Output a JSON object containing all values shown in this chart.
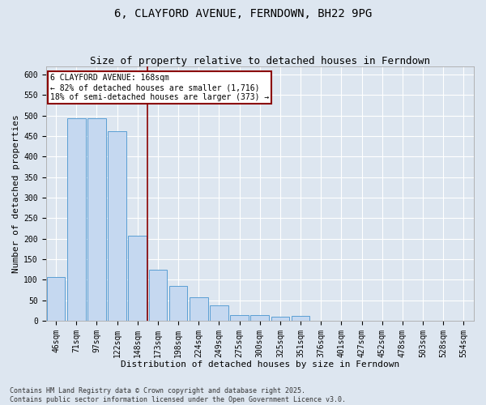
{
  "title": "6, CLAYFORD AVENUE, FERNDOWN, BH22 9PG",
  "subtitle": "Size of property relative to detached houses in Ferndown",
  "xlabel": "Distribution of detached houses by size in Ferndown",
  "ylabel": "Number of detached properties",
  "categories": [
    "46sqm",
    "71sqm",
    "97sqm",
    "122sqm",
    "148sqm",
    "173sqm",
    "198sqm",
    "224sqm",
    "249sqm",
    "275sqm",
    "300sqm",
    "325sqm",
    "351sqm",
    "376sqm",
    "401sqm",
    "427sqm",
    "452sqm",
    "478sqm",
    "503sqm",
    "528sqm",
    "554sqm"
  ],
  "values": [
    107,
    493,
    493,
    461,
    208,
    124,
    84,
    57,
    38,
    14,
    13,
    9,
    11,
    0,
    0,
    0,
    0,
    0,
    0,
    0,
    0
  ],
  "bar_color": "#c5d8f0",
  "bar_edge_color": "#5a9fd4",
  "vline_x_index": 5,
  "vline_color": "#8b0000",
  "annotation_text": "6 CLAYFORD AVENUE: 168sqm\n← 82% of detached houses are smaller (1,716)\n18% of semi-detached houses are larger (373) →",
  "annotation_box_color": "#8b0000",
  "annotation_text_color": "black",
  "annotation_bg_color": "white",
  "ylim": [
    0,
    620
  ],
  "yticks": [
    0,
    50,
    100,
    150,
    200,
    250,
    300,
    350,
    400,
    450,
    500,
    550,
    600
  ],
  "background_color": "#dde6f0",
  "grid_color": "white",
  "footer": "Contains HM Land Registry data © Crown copyright and database right 2025.\nContains public sector information licensed under the Open Government Licence v3.0.",
  "title_fontsize": 10,
  "subtitle_fontsize": 9,
  "xlabel_fontsize": 8,
  "ylabel_fontsize": 8,
  "tick_fontsize": 7,
  "footer_fontsize": 6
}
